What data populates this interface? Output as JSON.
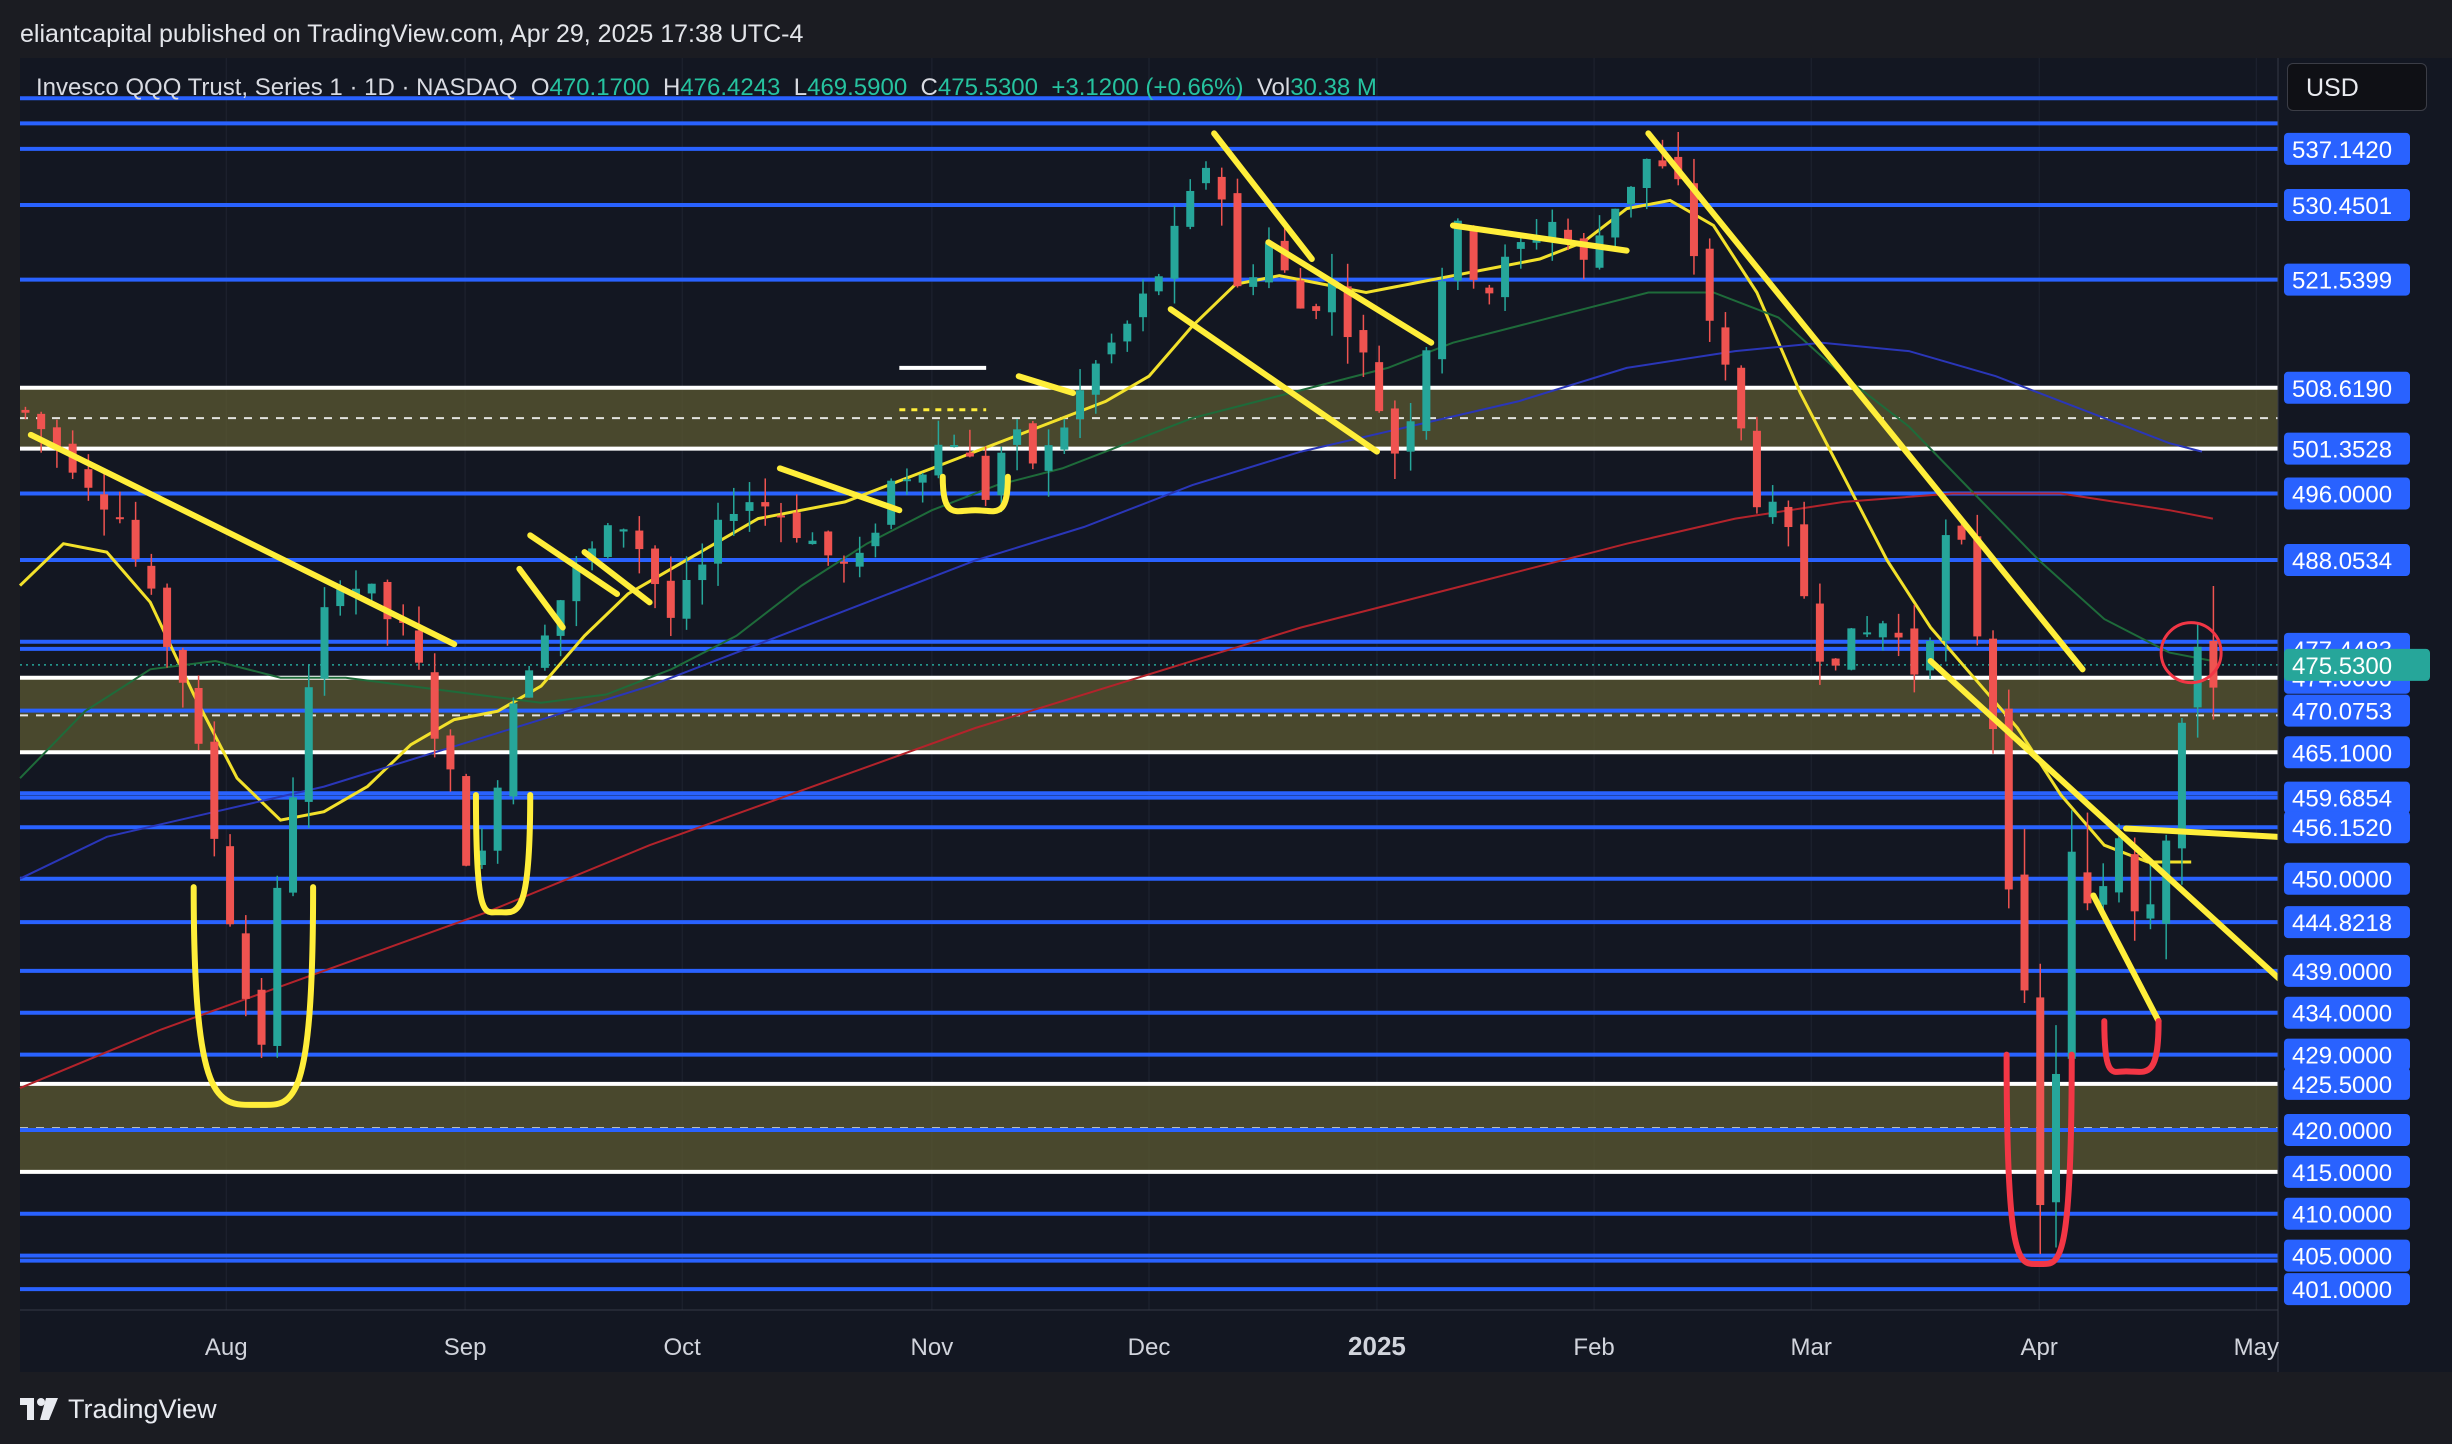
{
  "header": {
    "published": "eliantcapital published on TradingView.com, Apr 29, 2025 17:38 UTC-4"
  },
  "legend": {
    "symbol": "Invesco QQQ Trust, Series 1 · 1D · NASDAQ",
    "open_label": "O",
    "open": "470.1700",
    "high_label": "H",
    "high": "476.4243",
    "low_label": "L",
    "low": "469.5900",
    "close_label": "C",
    "close": "475.5300",
    "change": "+3.1200 (+0.66%)",
    "vol_label": "Vol",
    "vol": "30.38 M"
  },
  "currency": "USD",
  "footer": {
    "brand": "TradingView"
  },
  "colors": {
    "background": "#131722",
    "level_line": "#2962ff",
    "zone_fill": "#5c5a32",
    "up": "#26a69a",
    "down": "#ef5350",
    "annotation": "#ffee3a",
    "annotation_red": "#f23645",
    "sma_yellow": "#f2e12b",
    "sma_green": "#1e6b3a",
    "sma_blue": "#2a36b8",
    "sma_red": "#b3232b"
  },
  "chart_data": {
    "type": "candlestick",
    "title": "Invesco QQQ Trust, Series 1 · 1D · NASDAQ",
    "ylim": [
      398.5,
      548.0
    ],
    "x_months": [
      "Aug",
      "Sep",
      "Oct",
      "Nov",
      "Dec",
      "2025",
      "Feb",
      "Mar",
      "Apr",
      "May"
    ],
    "x_month_days": [
      16,
      38,
      58,
      81,
      101,
      122,
      142,
      162,
      183,
      203
    ],
    "x_range_days": [
      -3,
      205
    ],
    "price_levels": [
      537.142,
      530.4501,
      521.5399,
      508.619,
      501.3528,
      496.0,
      488.0534,
      477.4483,
      474.0,
      470.0753,
      465.1,
      459.6854,
      456.152,
      450.0,
      444.8218,
      439.0,
      434.0,
      429.0,
      425.5,
      420.0,
      415.0,
      410.0,
      405.0,
      401.0
    ],
    "extra_lines": [
      540.2,
      543.2,
      478.3,
      460.2,
      404.4
    ],
    "white_lines": [
      508.619,
      501.3528,
      474.0,
      465.1,
      425.5,
      415.0
    ],
    "zones": [
      {
        "from": 501.3528,
        "to": 508.619,
        "mid": 505.0
      },
      {
        "from": 465.1,
        "to": 474.0,
        "mid": 469.5
      },
      {
        "from": 415.0,
        "to": 425.5,
        "mid": 420.2
      }
    ],
    "current_price": 475.53,
    "anchors": [
      [
        -3,
        506
      ],
      [
        2,
        500
      ],
      [
        6,
        494
      ],
      [
        9,
        483
      ],
      [
        12,
        474
      ],
      [
        16,
        448
      ],
      [
        19,
        428
      ],
      [
        21,
        451
      ],
      [
        23,
        468
      ],
      [
        26,
        487
      ],
      [
        29,
        484
      ],
      [
        33,
        478
      ],
      [
        37,
        460
      ],
      [
        39,
        448
      ],
      [
        42,
        470
      ],
      [
        45,
        480
      ],
      [
        49,
        488
      ],
      [
        53,
        493
      ],
      [
        57,
        481
      ],
      [
        60,
        487
      ],
      [
        63,
        496
      ],
      [
        67,
        494
      ],
      [
        71,
        489
      ],
      [
        74,
        486
      ],
      [
        77,
        497
      ],
      [
        80,
        500
      ],
      [
        83,
        503
      ],
      [
        86,
        496
      ],
      [
        88,
        503
      ],
      [
        91,
        499
      ],
      [
        93,
        504
      ],
      [
        96,
        511
      ],
      [
        99,
        516
      ],
      [
        101,
        520
      ],
      [
        104,
        528
      ],
      [
        107,
        538
      ],
      [
        109,
        520
      ],
      [
        112,
        526
      ],
      [
        115,
        518
      ],
      [
        118,
        521
      ],
      [
        121,
        511
      ],
      [
        124,
        500
      ],
      [
        126,
        511
      ],
      [
        129,
        528
      ],
      [
        132,
        520
      ],
      [
        135,
        525
      ],
      [
        138,
        529
      ],
      [
        141,
        523
      ],
      [
        144,
        531
      ],
      [
        147,
        536
      ],
      [
        150,
        532
      ],
      [
        152,
        520
      ],
      [
        155,
        506
      ],
      [
        157,
        496
      ],
      [
        160,
        490
      ],
      [
        163,
        477
      ],
      [
        166,
        478
      ],
      [
        169,
        481
      ],
      [
        172,
        474
      ],
      [
        175,
        494
      ],
      [
        177,
        482
      ],
      [
        179,
        467
      ],
      [
        181,
        444
      ],
      [
        183,
        408
      ],
      [
        184,
        420
      ],
      [
        186,
        451
      ],
      [
        188,
        442
      ],
      [
        190,
        459
      ],
      [
        192,
        448
      ],
      [
        194,
        452
      ],
      [
        196,
        468
      ],
      [
        198,
        475
      ],
      [
        199,
        476
      ]
    ],
    "smas": [
      {
        "name": "sma_yellow",
        "points": [
          [
            -3,
            485
          ],
          [
            1,
            490
          ],
          [
            5,
            489
          ],
          [
            9,
            483
          ],
          [
            13,
            472
          ],
          [
            17,
            462
          ],
          [
            21,
            457
          ],
          [
            25,
            458
          ],
          [
            29,
            461
          ],
          [
            33,
            466
          ],
          [
            37,
            469
          ],
          [
            41,
            470
          ],
          [
            45,
            473
          ],
          [
            49,
            479
          ],
          [
            53,
            484
          ],
          [
            57,
            487
          ],
          [
            61,
            490
          ],
          [
            65,
            493
          ],
          [
            69,
            494
          ],
          [
            73,
            495
          ],
          [
            77,
            497
          ],
          [
            81,
            499
          ],
          [
            85,
            501
          ],
          [
            89,
            503
          ],
          [
            93,
            505
          ],
          [
            97,
            507
          ],
          [
            101,
            510
          ],
          [
            105,
            516
          ],
          [
            109,
            521
          ],
          [
            113,
            522
          ],
          [
            117,
            521
          ],
          [
            121,
            520
          ],
          [
            125,
            521
          ],
          [
            129,
            522
          ],
          [
            133,
            523
          ],
          [
            137,
            524
          ],
          [
            141,
            526
          ],
          [
            145,
            530
          ],
          [
            149,
            531
          ],
          [
            153,
            528
          ],
          [
            157,
            520
          ],
          [
            161,
            508
          ],
          [
            165,
            498
          ],
          [
            169,
            488
          ],
          [
            173,
            480
          ],
          [
            177,
            474
          ],
          [
            181,
            468
          ],
          [
            185,
            460
          ],
          [
            189,
            454
          ],
          [
            193,
            452
          ],
          [
            197,
            452
          ]
        ]
      },
      {
        "name": "sma_green",
        "points": [
          [
            -3,
            462
          ],
          [
            3,
            470
          ],
          [
            9,
            475
          ],
          [
            15,
            476
          ],
          [
            21,
            474
          ],
          [
            27,
            474
          ],
          [
            33,
            473
          ],
          [
            39,
            472
          ],
          [
            45,
            471
          ],
          [
            51,
            472
          ],
          [
            57,
            475
          ],
          [
            63,
            479
          ],
          [
            69,
            485
          ],
          [
            75,
            490
          ],
          [
            81,
            494
          ],
          [
            87,
            497
          ],
          [
            93,
            499
          ],
          [
            99,
            502
          ],
          [
            105,
            505
          ],
          [
            111,
            507
          ],
          [
            117,
            509
          ],
          [
            123,
            511
          ],
          [
            129,
            514
          ],
          [
            135,
            516
          ],
          [
            141,
            518
          ],
          [
            147,
            520
          ],
          [
            153,
            520
          ],
          [
            159,
            517
          ],
          [
            165,
            510
          ],
          [
            171,
            504
          ],
          [
            177,
            496
          ],
          [
            183,
            488
          ],
          [
            189,
            481
          ],
          [
            195,
            477
          ],
          [
            199,
            476
          ]
        ]
      },
      {
        "name": "sma_blue",
        "points": [
          [
            -3,
            450
          ],
          [
            5,
            455
          ],
          [
            15,
            458
          ],
          [
            25,
            461
          ],
          [
            35,
            465
          ],
          [
            45,
            469
          ],
          [
            55,
            473
          ],
          [
            65,
            478
          ],
          [
            75,
            483
          ],
          [
            85,
            488
          ],
          [
            95,
            492
          ],
          [
            105,
            497
          ],
          [
            115,
            501
          ],
          [
            125,
            504
          ],
          [
            135,
            507
          ],
          [
            145,
            511
          ],
          [
            155,
            513
          ],
          [
            163,
            514
          ],
          [
            171,
            513
          ],
          [
            179,
            510
          ],
          [
            187,
            506
          ],
          [
            195,
            502
          ],
          [
            198,
            501
          ]
        ]
      },
      {
        "name": "sma_red",
        "points": [
          [
            -3,
            425
          ],
          [
            10,
            432
          ],
          [
            25,
            439
          ],
          [
            40,
            446
          ],
          [
            55,
            454
          ],
          [
            70,
            461
          ],
          [
            85,
            468
          ],
          [
            100,
            474
          ],
          [
            115,
            480
          ],
          [
            130,
            485
          ],
          [
            145,
            490
          ],
          [
            155,
            493
          ],
          [
            165,
            495
          ],
          [
            175,
            496
          ],
          [
            185,
            496
          ],
          [
            195,
            494
          ],
          [
            199,
            493
          ]
        ]
      }
    ],
    "annotations": {
      "yellow_lines": [
        [
          [
            -2,
            503
          ],
          [
            37,
            478
          ]
        ],
        [
          [
            67,
            499
          ],
          [
            78,
            494
          ]
        ],
        [
          [
            49,
            489
          ],
          [
            55,
            483
          ]
        ],
        [
          [
            43,
            487
          ],
          [
            47,
            480
          ]
        ],
        [
          [
            44,
            491
          ],
          [
            52,
            484
          ]
        ],
        [
          [
            107,
            539
          ],
          [
            116,
            524
          ]
        ],
        [
          [
            103,
            518
          ],
          [
            122,
            501
          ]
        ],
        [
          [
            89,
            510
          ],
          [
            94,
            508
          ]
        ],
        [
          [
            129,
            528
          ],
          [
            145,
            525
          ]
        ],
        [
          [
            112,
            526
          ],
          [
            127,
            514
          ]
        ],
        [
          [
            147,
            539
          ],
          [
            187,
            475
          ]
        ],
        [
          [
            173,
            476
          ],
          [
            206,
            437
          ]
        ],
        [
          [
            188,
            448
          ],
          [
            194,
            433
          ]
        ],
        [
          [
            191,
            456
          ],
          [
            205,
            455
          ]
        ]
      ],
      "yellow_cups": [
        [
          [
            13,
            449
          ],
          [
            19,
            423
          ],
          [
            24,
            449
          ]
        ],
        [
          [
            39,
            460
          ],
          [
            41,
            446
          ],
          [
            44,
            460
          ]
        ],
        [
          [
            82,
            498
          ],
          [
            85,
            494
          ],
          [
            88,
            498
          ]
        ]
      ],
      "white_boxes": [
        {
          "x0": 78,
          "x1": 86,
          "y0": 506,
          "y1": 511
        }
      ],
      "red_cups": [
        [
          [
            180,
            429
          ],
          [
            183,
            404
          ],
          [
            186,
            429
          ]
        ],
        [
          [
            189,
            433
          ],
          [
            191,
            427
          ],
          [
            194,
            433
          ]
        ]
      ],
      "red_circle": {
        "x": 197,
        "y": 477
      }
    }
  }
}
